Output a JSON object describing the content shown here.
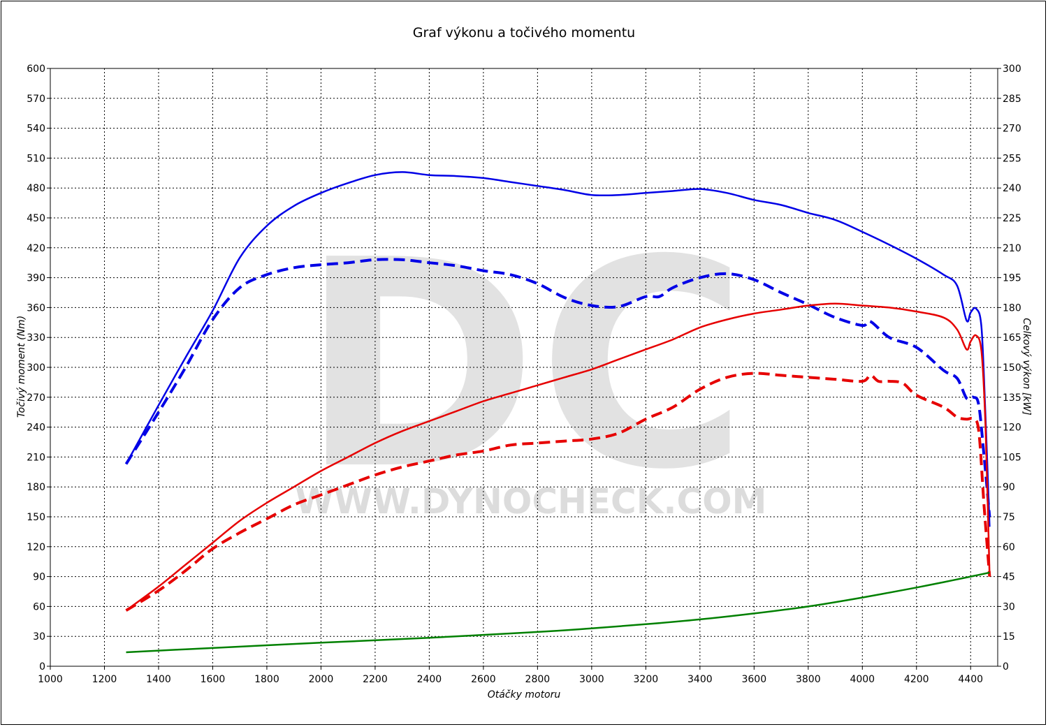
{
  "chart_data": {
    "type": "line",
    "title": "Graf výkonu a točivého momentu",
    "xlabel": "Otáčky motoru",
    "ylabel_left": "Točivý moment (Nm)",
    "ylabel_right": "Celkový výkon [kW]",
    "watermark": {
      "logo": "DC",
      "url": "WWW.DYNOCHECK.COM"
    },
    "xlim": [
      1000,
      4500
    ],
    "ylim_left": [
      0,
      600
    ],
    "ylim_right": [
      0,
      300
    ],
    "x_ticks": [
      "1000",
      "1200",
      "1400",
      "1600",
      "1800",
      "2000",
      "2200",
      "2400",
      "2600",
      "2800",
      "3000",
      "3200",
      "3400",
      "3600",
      "3800",
      "4000",
      "4200",
      "4400"
    ],
    "y_left_ticks": [
      "0",
      "30",
      "60",
      "90",
      "120",
      "150",
      "180",
      "210",
      "240",
      "270",
      "300",
      "330",
      "360",
      "390",
      "420",
      "450",
      "480",
      "510",
      "540",
      "570",
      "600"
    ],
    "y_right_ticks": [
      "0",
      "15",
      "30",
      "45",
      "60",
      "75",
      "90",
      "105",
      "120",
      "135",
      "150",
      "165",
      "180",
      "195",
      "210",
      "225",
      "240",
      "255",
      "270",
      "285",
      "300"
    ],
    "grid": true,
    "series": [
      {
        "color": "#0000e6",
        "style": "solid",
        "axis": "left",
        "width": 2.5,
        "points": [
          [
            1280,
            203
          ],
          [
            1400,
            262
          ],
          [
            1500,
            310
          ],
          [
            1600,
            357
          ],
          [
            1700,
            410
          ],
          [
            1800,
            442
          ],
          [
            1900,
            462
          ],
          [
            2000,
            475
          ],
          [
            2100,
            485
          ],
          [
            2200,
            493
          ],
          [
            2300,
            496
          ],
          [
            2400,
            493
          ],
          [
            2500,
            492
          ],
          [
            2600,
            490
          ],
          [
            2700,
            486
          ],
          [
            2800,
            482
          ],
          [
            2900,
            478
          ],
          [
            3000,
            473
          ],
          [
            3100,
            473
          ],
          [
            3200,
            475
          ],
          [
            3300,
            477
          ],
          [
            3400,
            479
          ],
          [
            3500,
            475
          ],
          [
            3600,
            468
          ],
          [
            3700,
            463
          ],
          [
            3800,
            455
          ],
          [
            3900,
            448
          ],
          [
            4000,
            436
          ],
          [
            4100,
            423
          ],
          [
            4200,
            409
          ],
          [
            4300,
            393
          ],
          [
            4350,
            382
          ],
          [
            4385,
            347
          ],
          [
            4400,
            355
          ],
          [
            4420,
            359
          ],
          [
            4440,
            340
          ],
          [
            4455,
            250
          ],
          [
            4470,
            140
          ]
        ]
      },
      {
        "color": "#0000e6",
        "style": "dashed",
        "axis": "left",
        "width": 4,
        "points": [
          [
            1280,
            203
          ],
          [
            1400,
            255
          ],
          [
            1500,
            300
          ],
          [
            1600,
            348
          ],
          [
            1700,
            380
          ],
          [
            1800,
            393
          ],
          [
            1900,
            400
          ],
          [
            2000,
            403
          ],
          [
            2100,
            405
          ],
          [
            2200,
            408
          ],
          [
            2300,
            408
          ],
          [
            2400,
            405
          ],
          [
            2500,
            402
          ],
          [
            2600,
            397
          ],
          [
            2700,
            393
          ],
          [
            2800,
            384
          ],
          [
            2900,
            370
          ],
          [
            3000,
            362
          ],
          [
            3100,
            361
          ],
          [
            3200,
            371
          ],
          [
            3250,
            371
          ],
          [
            3300,
            380
          ],
          [
            3400,
            390
          ],
          [
            3500,
            394
          ],
          [
            3600,
            388
          ],
          [
            3700,
            375
          ],
          [
            3800,
            363
          ],
          [
            3900,
            350
          ],
          [
            4000,
            342
          ],
          [
            4030,
            346
          ],
          [
            4100,
            330
          ],
          [
            4200,
            320
          ],
          [
            4300,
            297
          ],
          [
            4350,
            289
          ],
          [
            4385,
            269
          ],
          [
            4410,
            270
          ],
          [
            4430,
            262
          ],
          [
            4450,
            210
          ],
          [
            4470,
            150
          ]
        ]
      },
      {
        "color": "#e60000",
        "style": "solid",
        "axis": "right",
        "width": 2.5,
        "points": [
          [
            1280,
            28
          ],
          [
            1400,
            40
          ],
          [
            1500,
            51
          ],
          [
            1600,
            62
          ],
          [
            1700,
            73
          ],
          [
            1800,
            82
          ],
          [
            1900,
            90
          ],
          [
            2000,
            98
          ],
          [
            2100,
            105
          ],
          [
            2200,
            112
          ],
          [
            2300,
            118
          ],
          [
            2400,
            123
          ],
          [
            2500,
            128
          ],
          [
            2600,
            133
          ],
          [
            2700,
            137
          ],
          [
            2800,
            141
          ],
          [
            2900,
            145
          ],
          [
            3000,
            149
          ],
          [
            3100,
            154
          ],
          [
            3200,
            159
          ],
          [
            3300,
            164
          ],
          [
            3400,
            170
          ],
          [
            3500,
            174
          ],
          [
            3600,
            177
          ],
          [
            3700,
            179
          ],
          [
            3800,
            181
          ],
          [
            3900,
            182
          ],
          [
            4000,
            181
          ],
          [
            4100,
            180
          ],
          [
            4200,
            178
          ],
          [
            4300,
            175
          ],
          [
            4350,
            169
          ],
          [
            4385,
            159
          ],
          [
            4400,
            163
          ],
          [
            4420,
            166
          ],
          [
            4440,
            158
          ],
          [
            4455,
            120
          ],
          [
            4470,
            45
          ]
        ]
      },
      {
        "color": "#e60000",
        "style": "dashed",
        "axis": "right",
        "width": 4,
        "points": [
          [
            1280,
            28
          ],
          [
            1400,
            38
          ],
          [
            1500,
            48
          ],
          [
            1600,
            59
          ],
          [
            1700,
            67
          ],
          [
            1800,
            74
          ],
          [
            1900,
            81
          ],
          [
            2000,
            86
          ],
          [
            2100,
            91
          ],
          [
            2200,
            96
          ],
          [
            2300,
            100
          ],
          [
            2400,
            103
          ],
          [
            2500,
            106
          ],
          [
            2600,
            108
          ],
          [
            2700,
            111
          ],
          [
            2800,
            112
          ],
          [
            2900,
            113
          ],
          [
            3000,
            114
          ],
          [
            3100,
            117
          ],
          [
            3200,
            124
          ],
          [
            3300,
            130
          ],
          [
            3400,
            139
          ],
          [
            3500,
            145
          ],
          [
            3600,
            147
          ],
          [
            3700,
            146
          ],
          [
            3800,
            145
          ],
          [
            3900,
            144
          ],
          [
            4000,
            143
          ],
          [
            4030,
            146
          ],
          [
            4060,
            143
          ],
          [
            4100,
            143
          ],
          [
            4150,
            142
          ],
          [
            4200,
            136
          ],
          [
            4300,
            130
          ],
          [
            4350,
            125
          ],
          [
            4385,
            124
          ],
          [
            4410,
            124
          ],
          [
            4430,
            118
          ],
          [
            4450,
            80
          ],
          [
            4470,
            45
          ]
        ]
      },
      {
        "color": "#008000",
        "style": "solid",
        "axis": "right",
        "width": 2.5,
        "points": [
          [
            1280,
            7
          ],
          [
            1500,
            8.5
          ],
          [
            1800,
            10.5
          ],
          [
            2000,
            11.8
          ],
          [
            2400,
            14.3
          ],
          [
            2800,
            17.2
          ],
          [
            3000,
            19
          ],
          [
            3200,
            21.1
          ],
          [
            3400,
            23.5
          ],
          [
            3600,
            26.5
          ],
          [
            3800,
            30
          ],
          [
            4000,
            34.5
          ],
          [
            4200,
            39.5
          ],
          [
            4300,
            42.2
          ],
          [
            4400,
            45
          ],
          [
            4470,
            47
          ]
        ]
      }
    ]
  }
}
